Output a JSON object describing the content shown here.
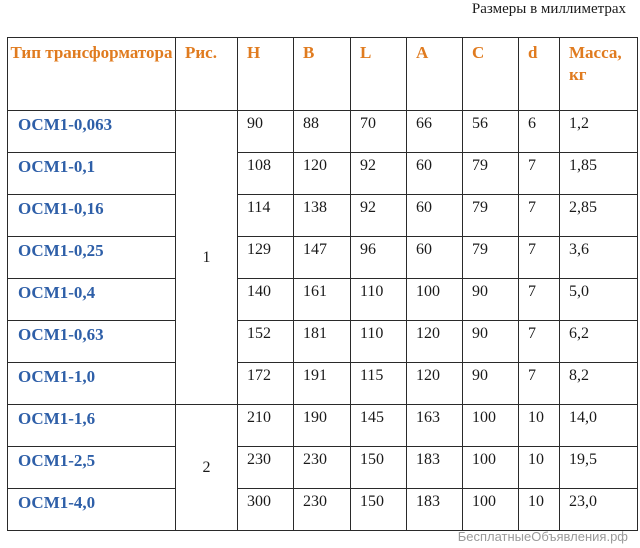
{
  "caption": "Размеры в миллиметрах",
  "table": {
    "headers": {
      "type": "Тип трансформатора",
      "fig": "Рис.",
      "h": "H",
      "b": "B",
      "l": "L",
      "a": "A",
      "c": "C",
      "d": "d",
      "mass": "Масса, кг"
    },
    "groups": [
      {
        "fig": "1",
        "rows": [
          {
            "type": "ОСМ1-0,063",
            "h": "90",
            "b": "88",
            "l": "70",
            "a": "66",
            "c": "56",
            "d": "6",
            "mass": "1,2"
          },
          {
            "type": "ОСМ1-0,1",
            "h": "108",
            "b": "120",
            "l": "92",
            "a": "60",
            "c": "79",
            "d": "7",
            "mass": "1,85"
          },
          {
            "type": "ОСМ1-0,16",
            "h": "114",
            "b": "138",
            "l": "92",
            "a": "60",
            "c": "79",
            "d": "7",
            "mass": "2,85"
          },
          {
            "type": "ОСМ1-0,25",
            "h": "129",
            "b": "147",
            "l": "96",
            "a": "60",
            "c": "79",
            "d": "7",
            "mass": "3,6"
          },
          {
            "type": "ОСМ1-0,4",
            "h": "140",
            "b": "161",
            "l": "110",
            "a": "100",
            "c": "90",
            "d": "7",
            "mass": "5,0"
          },
          {
            "type": "ОСМ1-0,63",
            "h": "152",
            "b": "181",
            "l": "110",
            "a": "120",
            "c": "90",
            "d": "7",
            "mass": "6,2"
          },
          {
            "type": "ОСМ1-1,0",
            "h": "172",
            "b": "191",
            "l": "115",
            "a": "120",
            "c": "90",
            "d": "7",
            "mass": "8,2"
          }
        ]
      },
      {
        "fig": "2",
        "rows": [
          {
            "type": "ОСМ1-1,6",
            "h": "210",
            "b": "190",
            "l": "145",
            "a": "163",
            "c": "100",
            "d": "10",
            "mass": "14,0"
          },
          {
            "type": "ОСМ1-2,5",
            "h": "230",
            "b": "230",
            "l": "150",
            "a": "183",
            "c": "100",
            "d": "10",
            "mass": "19,5"
          },
          {
            "type": "ОСМ1-4,0",
            "h": "300",
            "b": "230",
            "l": "150",
            "a": "183",
            "c": "100",
            "d": "10",
            "mass": "23,0"
          }
        ]
      }
    ]
  },
  "watermark": "БесплатныеОбъявления.рф",
  "colors": {
    "header_text": "#e07b1f",
    "type_text": "#2e5fa8"
  }
}
